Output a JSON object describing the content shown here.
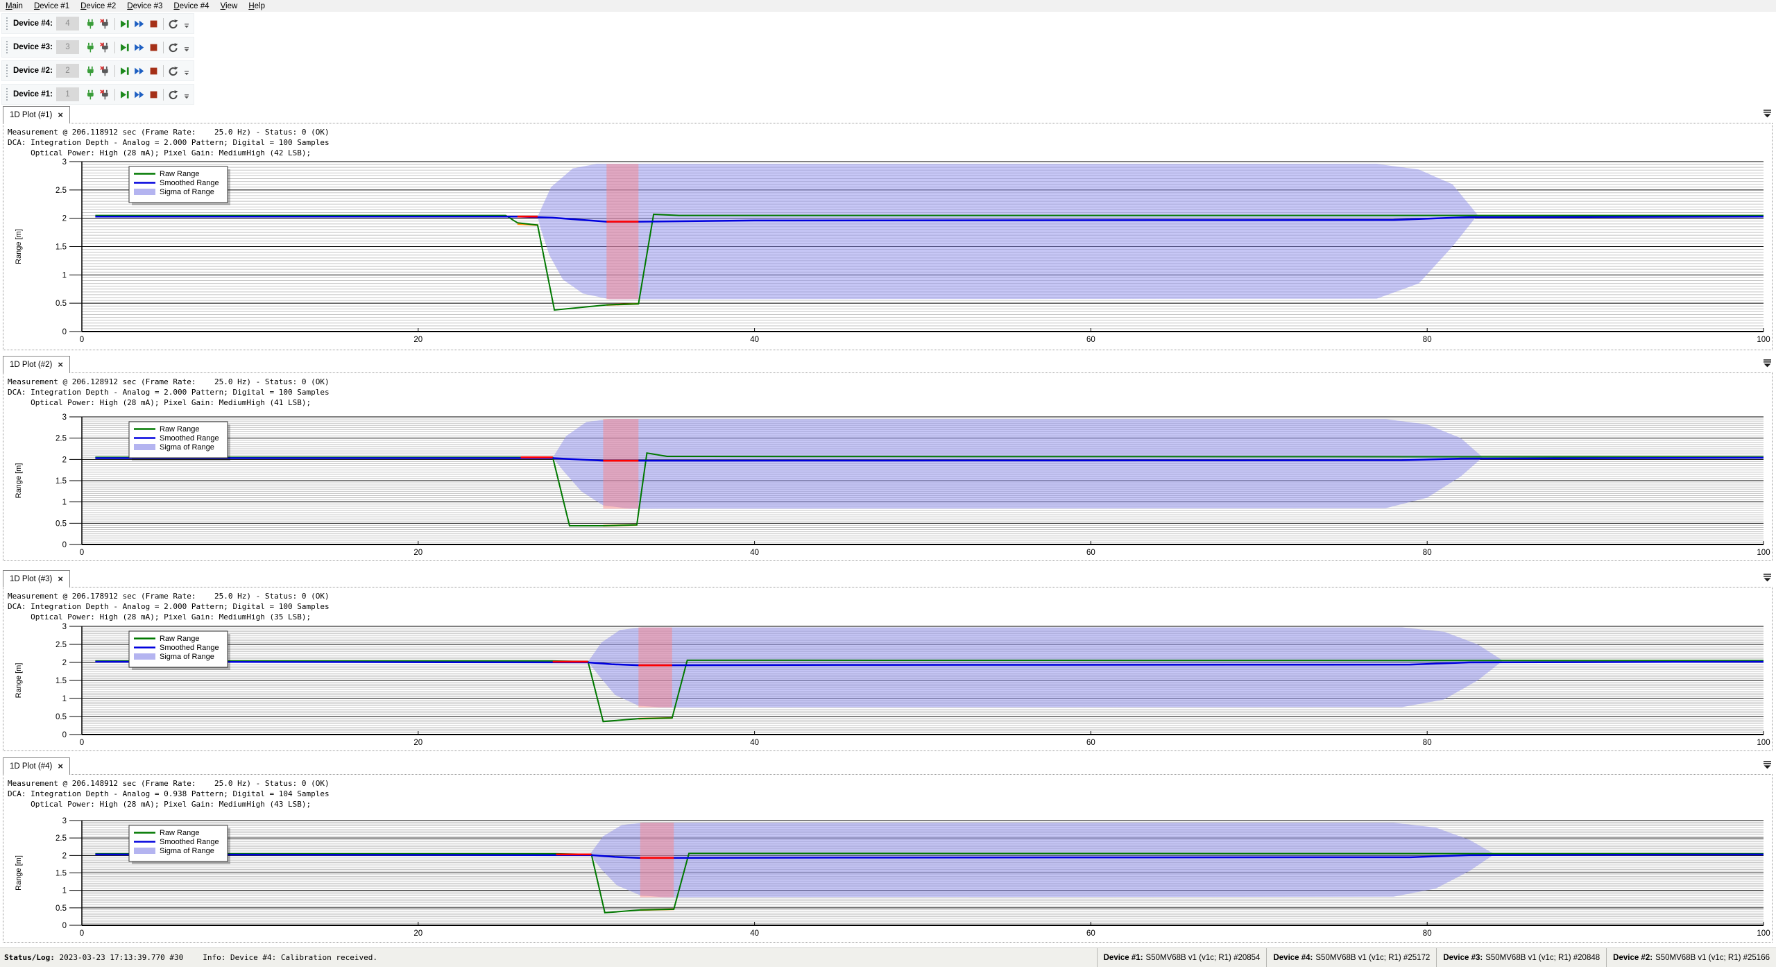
{
  "menu": {
    "items": [
      "Main",
      "Device #1",
      "Device #2",
      "Device #3",
      "Device #4",
      "View",
      "Help"
    ]
  },
  "toolbar_buttons": [
    {
      "name": "connect",
      "icon": "plug-icon"
    },
    {
      "name": "disconnect",
      "icon": "unplug-icon"
    },
    {
      "name": "play-pause",
      "icon": "play-pause-icon"
    },
    {
      "name": "fast-forward",
      "icon": "fast-forward-icon"
    },
    {
      "name": "stop",
      "icon": "stop-icon"
    },
    {
      "name": "restart",
      "icon": "restart-icon"
    }
  ],
  "toolbars": [
    {
      "label": "Device #4:",
      "value": "4"
    },
    {
      "label": "Device #3:",
      "value": "3"
    },
    {
      "label": "Device #2:",
      "value": "2"
    },
    {
      "label": "Device #1:",
      "value": "1"
    }
  ],
  "colors": {
    "raw_range": "#007800",
    "smoothed_range": "#0000dd",
    "invalid_red": "#ff0000",
    "warning_orange": "#ff8c00",
    "sigma_fill": "#9090ee",
    "sigma_swatch": "#b4b4f0",
    "pink_band": "#ff8080",
    "icon_green": "#3a9d3a",
    "icon_gray": "#5a5a5a",
    "icon_blue": "#1d5fc2",
    "icon_stop": "#a53018",
    "minor_grid": "#c4c4c4"
  },
  "plots": [
    {
      "tab_label": "1D Plot (#1)",
      "meas_lines": [
        "Measurement @ 206.118912 sec (Frame Rate:    25.0 Hz) - Status: 0 (OK)",
        "DCA: Integration Depth - Analog = 2.000 Pattern; Digital = 100 Samples",
        "     Optical Power: High (28 mA); Pixel Gain: MediumHigh (42 LSB);"
      ],
      "chart": {
        "type": "line",
        "xlim": [
          0,
          100
        ],
        "ylim": [
          0,
          3
        ],
        "xticks": [
          0,
          20,
          40,
          60,
          80,
          100
        ],
        "yticks": [
          0,
          0.5,
          1,
          1.5,
          2,
          2.5,
          3
        ],
        "ylabel": "Range [m]",
        "legend": [
          "Raw Range",
          "Smoothed Range",
          "Sigma of Range"
        ],
        "sigma_polygon": [
          [
            27.1,
            2.03
          ],
          [
            27.9,
            2.55
          ],
          [
            29.2,
            2.88
          ],
          [
            30.6,
            2.96
          ],
          [
            77.0,
            2.96
          ],
          [
            79.5,
            2.86
          ],
          [
            81.5,
            2.6
          ],
          [
            83.0,
            2.06
          ],
          [
            81.5,
            1.5
          ],
          [
            79.5,
            0.85
          ],
          [
            77.0,
            0.58
          ],
          [
            31.4,
            0.57
          ],
          [
            29.8,
            0.67
          ],
          [
            28.6,
            0.92
          ],
          [
            27.8,
            1.35
          ],
          [
            27.3,
            1.8
          ]
        ],
        "pink_band": {
          "x": [
            31.2,
            33.1
          ],
          "y": [
            0.57,
            2.96
          ]
        },
        "raw_line": [
          [
            0.8,
            2.05
          ],
          [
            25.2,
            2.05
          ],
          [
            25.9,
            1.92
          ],
          [
            27.1,
            1.88
          ],
          [
            28.1,
            0.38
          ],
          [
            31.2,
            0.47
          ],
          [
            33.1,
            0.49
          ],
          [
            34.0,
            2.07
          ],
          [
            35.5,
            2.05
          ],
          [
            100,
            2.05
          ]
        ],
        "smoothed_line": [
          [
            0.8,
            2.03
          ],
          [
            25.9,
            2.03
          ],
          [
            28.0,
            2.01
          ],
          [
            31.2,
            1.94
          ],
          [
            33.1,
            1.94
          ],
          [
            40,
            1.96
          ],
          [
            78,
            1.97
          ],
          [
            82.5,
            2.02
          ],
          [
            100,
            2.03
          ]
        ],
        "red_segments": [
          [
            [
              25.9,
              2.03
            ],
            [
              27.1,
              2.03
            ]
          ],
          [
            [
              31.2,
              1.94
            ],
            [
              33.1,
              1.94
            ]
          ]
        ],
        "orange_segments": [
          [
            [
              25.9,
              1.9
            ],
            [
              27.1,
              1.88
            ]
          ],
          [
            [
              31.2,
              0.47
            ],
            [
              33.1,
              0.49
            ]
          ]
        ]
      }
    },
    {
      "tab_label": "1D Plot (#2)",
      "meas_lines": [
        "Measurement @ 206.128912 sec (Frame Rate:    25.0 Hz) - Status: 0 (OK)",
        "DCA: Integration Depth - Analog = 2.000 Pattern; Digital = 100 Samples",
        "     Optical Power: High (28 mA); Pixel Gain: MediumHigh (41 LSB);"
      ],
      "chart": {
        "type": "line",
        "xlim": [
          0,
          100
        ],
        "ylim": [
          0,
          3
        ],
        "xticks": [
          0,
          20,
          40,
          60,
          80,
          100
        ],
        "yticks": [
          0,
          0.5,
          1,
          1.5,
          2,
          2.5,
          3
        ],
        "ylabel": "Range [m]",
        "legend": [
          "Raw Range",
          "Smoothed Range",
          "Sigma of Range"
        ],
        "sigma_polygon": [
          [
            28.0,
            2.04
          ],
          [
            28.8,
            2.55
          ],
          [
            30.0,
            2.88
          ],
          [
            31.4,
            2.95
          ],
          [
            77.5,
            2.95
          ],
          [
            80.0,
            2.82
          ],
          [
            82.0,
            2.5
          ],
          [
            83.3,
            2.05
          ],
          [
            82.0,
            1.6
          ],
          [
            80.0,
            1.1
          ],
          [
            77.5,
            0.85
          ],
          [
            32.6,
            0.84
          ],
          [
            31.0,
            0.92
          ],
          [
            29.7,
            1.25
          ],
          [
            28.7,
            1.7
          ]
        ],
        "pink_band": {
          "x": [
            31.0,
            33.1
          ],
          "y": [
            0.84,
            2.95
          ]
        },
        "raw_line": [
          [
            0.8,
            2.05
          ],
          [
            28.0,
            2.05
          ],
          [
            29.0,
            0.44
          ],
          [
            31.0,
            0.44
          ],
          [
            33.0,
            0.46
          ],
          [
            33.6,
            2.15
          ],
          [
            34.8,
            2.07
          ],
          [
            100,
            2.06
          ]
        ],
        "smoothed_line": [
          [
            0.8,
            2.03
          ],
          [
            28.0,
            2.03
          ],
          [
            30.0,
            1.99
          ],
          [
            31.0,
            1.97
          ],
          [
            33.1,
            1.97
          ],
          [
            78.5,
            1.98
          ],
          [
            82.0,
            2.02
          ],
          [
            100,
            2.04
          ]
        ],
        "red_segments": [
          [
            [
              26.1,
              2.05
            ],
            [
              28.0,
              2.05
            ]
          ],
          [
            [
              31.0,
              1.97
            ],
            [
              33.1,
              1.97
            ]
          ]
        ],
        "orange_segments": [
          [
            [
              31.0,
              0.44
            ],
            [
              33.0,
              0.46
            ]
          ]
        ]
      }
    },
    {
      "tab_label": "1D Plot (#3)",
      "meas_lines": [
        "Measurement @ 206.178912 sec (Frame Rate:    25.0 Hz) - Status: 0 (OK)",
        "DCA: Integration Depth - Analog = 2.000 Pattern; Digital = 100 Samples",
        "     Optical Power: High (28 mA); Pixel Gain: MediumHigh (35 LSB);"
      ],
      "chart": {
        "type": "line",
        "xlim": [
          0,
          100
        ],
        "ylim": [
          0,
          3
        ],
        "xticks": [
          0,
          20,
          40,
          60,
          80,
          100
        ],
        "yticks": [
          0,
          0.5,
          1,
          1.5,
          2,
          2.5,
          3
        ],
        "ylabel": "Range [m]",
        "legend": [
          "Raw Range",
          "Smoothed Range",
          "Sigma of Range"
        ],
        "sigma_polygon": [
          [
            30.1,
            2.02
          ],
          [
            30.9,
            2.55
          ],
          [
            32.0,
            2.9
          ],
          [
            33.3,
            2.97
          ],
          [
            78.5,
            2.97
          ],
          [
            81.0,
            2.85
          ],
          [
            83.0,
            2.5
          ],
          [
            84.5,
            2.05
          ],
          [
            83.0,
            1.5
          ],
          [
            81.0,
            0.97
          ],
          [
            78.5,
            0.76
          ],
          [
            34.6,
            0.75
          ],
          [
            33.1,
            0.8
          ],
          [
            31.7,
            1.1
          ],
          [
            30.8,
            1.6
          ]
        ],
        "pink_band": {
          "x": [
            33.1,
            35.1
          ],
          "y": [
            0.75,
            2.97
          ]
        },
        "raw_line": [
          [
            0.8,
            2.04
          ],
          [
            28.0,
            2.04
          ],
          [
            30.1,
            2.02
          ],
          [
            31.0,
            0.36
          ],
          [
            33.1,
            0.44
          ],
          [
            35.1,
            0.46
          ],
          [
            36.0,
            2.06
          ],
          [
            100,
            2.05
          ]
        ],
        "smoothed_line": [
          [
            0.8,
            2.02
          ],
          [
            30.1,
            2.0
          ],
          [
            31.5,
            1.95
          ],
          [
            33.1,
            1.92
          ],
          [
            35.1,
            1.92
          ],
          [
            45,
            1.93
          ],
          [
            79,
            1.94
          ],
          [
            82.5,
            2.0
          ],
          [
            100,
            2.02
          ]
        ],
        "red_segments": [
          [
            [
              28.0,
              2.02
            ],
            [
              30.1,
              2.02
            ]
          ],
          [
            [
              33.1,
              1.92
            ],
            [
              35.1,
              1.92
            ]
          ]
        ],
        "orange_segments": [
          [
            [
              33.1,
              0.44
            ],
            [
              35.1,
              0.46
            ]
          ]
        ]
      }
    },
    {
      "tab_label": "1D Plot (#4)",
      "meas_lines": [
        "Measurement @ 206.148912 sec (Frame Rate:    25.0 Hz) - Status: 0 (OK)",
        "DCA: Integration Depth - Analog = 0.938 Pattern; Digital = 104 Samples",
        "     Optical Power: High (28 mA); Pixel Gain: MediumHigh (43 LSB);"
      ],
      "chart": {
        "type": "line",
        "xlim": [
          0,
          100
        ],
        "ylim": [
          0,
          3
        ],
        "xticks": [
          0,
          20,
          40,
          60,
          80,
          100
        ],
        "yticks": [
          0,
          0.5,
          1,
          1.5,
          2,
          2.5,
          3
        ],
        "ylabel": "Range [m]",
        "legend": [
          "Raw Range",
          "Smoothed Range",
          "Sigma of Range"
        ],
        "sigma_polygon": [
          [
            30.2,
            2.03
          ],
          [
            31.0,
            2.55
          ],
          [
            32.1,
            2.87
          ],
          [
            33.4,
            2.94
          ],
          [
            78.0,
            2.94
          ],
          [
            80.5,
            2.8
          ],
          [
            82.5,
            2.45
          ],
          [
            84.0,
            2.04
          ],
          [
            82.5,
            1.55
          ],
          [
            80.5,
            1.05
          ],
          [
            78.0,
            0.82
          ],
          [
            34.7,
            0.8
          ],
          [
            33.2,
            0.86
          ],
          [
            31.8,
            1.15
          ],
          [
            30.9,
            1.6
          ]
        ],
        "pink_band": {
          "x": [
            33.2,
            35.2
          ],
          "y": [
            0.8,
            2.94
          ]
        },
        "raw_line": [
          [
            0.8,
            2.05
          ],
          [
            28.2,
            2.05
          ],
          [
            30.3,
            2.03
          ],
          [
            31.1,
            0.36
          ],
          [
            33.2,
            0.44
          ],
          [
            35.2,
            0.46
          ],
          [
            36.1,
            2.06
          ],
          [
            100,
            2.05
          ]
        ],
        "smoothed_line": [
          [
            0.8,
            2.03
          ],
          [
            30.3,
            2.01
          ],
          [
            31.7,
            1.96
          ],
          [
            33.2,
            1.93
          ],
          [
            35.2,
            1.93
          ],
          [
            45,
            1.94
          ],
          [
            79,
            1.95
          ],
          [
            82.5,
            2.01
          ],
          [
            100,
            2.03
          ]
        ],
        "red_segments": [
          [
            [
              28.2,
              2.03
            ],
            [
              30.3,
              2.03
            ]
          ],
          [
            [
              33.2,
              1.93
            ],
            [
              35.2,
              1.93
            ]
          ]
        ],
        "orange_segments": [
          [
            [
              33.2,
              0.44
            ],
            [
              35.2,
              0.46
            ]
          ]
        ]
      }
    }
  ],
  "statusbar": {
    "label": "Status/Log:",
    "timestamp": "2023-03-23 17:13:39.770 #30",
    "message": "Info: Device #4: Calibration received.",
    "devices": [
      {
        "label": "Device #1:",
        "info": "S50MV68B v1 (v1c; R1) #20854"
      },
      {
        "label": "Device #4:",
        "info": "S50MV68B v1 (v1c; R1) #25172"
      },
      {
        "label": "Device #3:",
        "info": "S50MV68B v1 (v1c; R1) #20848"
      },
      {
        "label": "Device #2:",
        "info": "S50MV68B v1 (v1c; R1) #25166"
      }
    ]
  }
}
